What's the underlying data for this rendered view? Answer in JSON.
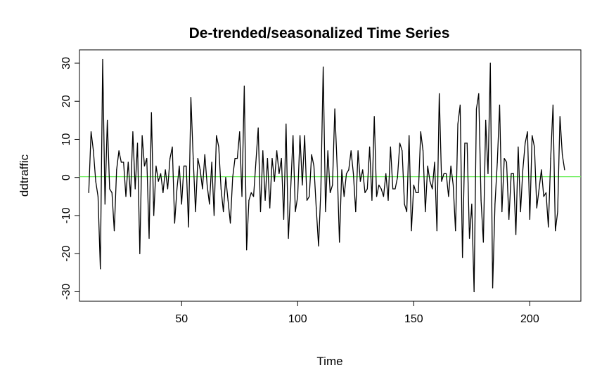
{
  "chart_data": {
    "type": "line",
    "title": "De-trended/seasonalized Time Series",
    "xlabel": "Time",
    "ylabel": "ddtraffic",
    "xlim": [
      6,
      222
    ],
    "ylim": [
      -32.5,
      33.5
    ],
    "x_ticks": [
      50,
      100,
      150,
      200
    ],
    "y_ticks": [
      -30,
      -20,
      -10,
      0,
      10,
      20,
      30
    ],
    "x_start": 10,
    "values": [
      -4,
      12,
      7,
      -1,
      -5,
      -24,
      31,
      -7,
      15,
      -3,
      -4,
      -14,
      2,
      7,
      4,
      4,
      -5,
      4,
      -5,
      12,
      -3,
      9,
      -20,
      11,
      3,
      5,
      -16,
      17,
      -10,
      3,
      -1,
      1,
      -4,
      2,
      -3,
      5,
      8,
      -12,
      -3,
      3,
      -7,
      3,
      3,
      -13,
      21,
      5,
      -9,
      5,
      2,
      -3,
      6,
      -2,
      -7,
      4,
      -10,
      11,
      8,
      -3,
      -9,
      0,
      -6,
      -12,
      0,
      5,
      5,
      12,
      -5,
      24,
      -19,
      -6,
      -4,
      -5,
      4,
      13,
      -9,
      7,
      -6,
      5,
      -8,
      5,
      -1,
      7,
      1,
      5,
      -11,
      14,
      -16,
      -3,
      11,
      -9,
      -5,
      11,
      -2,
      11,
      -6,
      -5,
      6,
      3,
      -8,
      -18,
      -3,
      29,
      -9,
      7,
      -4,
      -2,
      18,
      3,
      -17,
      2,
      -5,
      1,
      2,
      7,
      1,
      -9,
      7,
      -1,
      2,
      -4,
      -3,
      8,
      -6,
      16,
      -5,
      -2,
      -3,
      -5,
      1,
      -6,
      8,
      -3,
      -3,
      0,
      9,
      7,
      -7,
      -9,
      11,
      -14,
      -2,
      -4,
      -4,
      12,
      7,
      -9,
      3,
      -1,
      -3,
      4,
      -14,
      22,
      -1,
      1,
      1,
      -5,
      3,
      -2,
      -14,
      14,
      19,
      -21,
      9,
      9,
      -16,
      -7,
      -30,
      18,
      22,
      -6,
      -17,
      15,
      1,
      30,
      -29,
      -7,
      4,
      19,
      -9,
      5,
      4,
      -11,
      1,
      1,
      -15,
      8,
      -9,
      2,
      9,
      12,
      -11,
      11,
      8,
      -8,
      -3,
      2,
      -5,
      -4,
      -13,
      5,
      19,
      -14,
      -9,
      16,
      6,
      2
    ],
    "reference_line": {
      "y": 0.2,
      "color": "#66ee55"
    },
    "line_color": "#000000",
    "grid": false,
    "legend": "none"
  }
}
